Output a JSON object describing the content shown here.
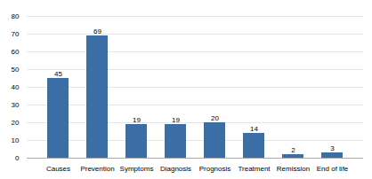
{
  "chart_data": {
    "type": "bar",
    "categories": [
      "Causes",
      "Prevention",
      "Symptoms",
      "Diagnosis",
      "Prognosis",
      "Treatment",
      "Remission",
      "End of life"
    ],
    "values": [
      45,
      69,
      19,
      19,
      20,
      14,
      2,
      3
    ],
    "color": "#3A6EA5",
    "ylim": [
      0,
      80
    ],
    "yticks": [
      0,
      10,
      20,
      30,
      40,
      50,
      60,
      70,
      80
    ],
    "grid": true,
    "data_labels": true
  }
}
